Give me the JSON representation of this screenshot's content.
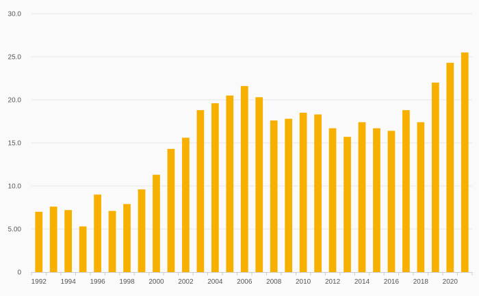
{
  "chart_data": {
    "type": "bar",
    "title": "",
    "xlabel": "",
    "ylabel": "",
    "categories": [
      "1992",
      "1993",
      "1994",
      "1995",
      "1996",
      "1997",
      "1998",
      "1999",
      "2000",
      "2001",
      "2002",
      "2003",
      "2004",
      "2005",
      "2006",
      "2007",
      "2008",
      "2009",
      "2010",
      "2011",
      "2012",
      "2013",
      "2014",
      "2015",
      "2016",
      "2017",
      "2018",
      "2019",
      "2020",
      "2021"
    ],
    "values": [
      7.0,
      7.6,
      7.2,
      5.3,
      9.0,
      7.1,
      7.9,
      9.6,
      11.3,
      14.3,
      15.6,
      18.8,
      19.6,
      20.5,
      21.6,
      20.3,
      17.6,
      17.8,
      18.5,
      18.3,
      16.7,
      15.7,
      17.4,
      16.7,
      16.4,
      18.8,
      17.4,
      22.0,
      24.3,
      25.5
    ],
    "x_tick_labels": [
      "1992",
      "1994",
      "1996",
      "1998",
      "2000",
      "2002",
      "2004",
      "2006",
      "2008",
      "2010",
      "2012",
      "2014",
      "2016",
      "2018",
      "2020"
    ],
    "y_tick_labels": [
      "0",
      "5.00",
      "10.0",
      "15.0",
      "20.0",
      "25.0",
      "30.0"
    ],
    "y_ticks": [
      0,
      5,
      10,
      15,
      20,
      25,
      30
    ],
    "ylim": [
      0,
      30
    ],
    "grid": true,
    "legend": "none",
    "colors": {
      "bar": "#f8b000",
      "grid": "#e6e6e6",
      "axis": "#cccccc",
      "text": "#555555",
      "background": "#fafafa"
    }
  }
}
